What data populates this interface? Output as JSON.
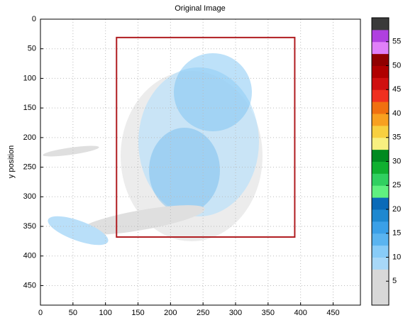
{
  "chart_data": {
    "type": "image",
    "title": "Original Image",
    "y_label": "y position",
    "xlim": [
      0,
      492
    ],
    "ylim": [
      0,
      483
    ],
    "y_reversed": true,
    "xticks": [
      0,
      50,
      100,
      150,
      200,
      250,
      300,
      350,
      400,
      450
    ],
    "yticks": [
      0,
      50,
      100,
      150,
      200,
      250,
      300,
      350,
      400,
      450
    ],
    "grid": true,
    "box": {
      "x": [
        117,
        391
      ],
      "y": [
        31,
        368
      ],
      "color": "#b01c20"
    },
    "colorbar": {
      "lim": [
        0,
        60
      ],
      "ticks": [
        5,
        10,
        15,
        20,
        25,
        30,
        35,
        40,
        45,
        50,
        55
      ],
      "colors": [
        "#d8d8d8",
        "#d8d8d8",
        "#d8d8d8",
        "#a8d8f8",
        "#88ccf8",
        "#5ab4f0",
        "#3aa0e8",
        "#1e88d0",
        "#0a6ab8",
        "#60f080",
        "#30d060",
        "#10b030",
        "#008a20",
        "#f8f080",
        "#f8d040",
        "#f8a020",
        "#f07010",
        "#f03020",
        "#d01010",
        "#b00000",
        "#900000",
        "#e080f8",
        "#b040e0",
        "#3a3a3a"
      ]
    }
  }
}
